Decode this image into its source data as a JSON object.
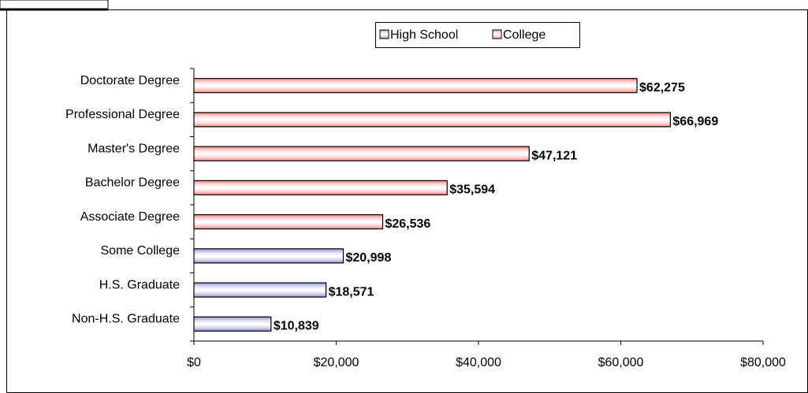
{
  "chart_data": {
    "type": "bar",
    "orientation": "horizontal",
    "categories": [
      "Doctorate Degree",
      "Professional Degree",
      "Master's Degree",
      "Bachelor Degree",
      "Associate Degree",
      "Some College",
      "H.S. Graduate",
      "Non-H.S. Graduate"
    ],
    "series": [
      {
        "name": "High School",
        "color": "#8f8fd0",
        "values": [
          null,
          null,
          null,
          null,
          null,
          20998,
          18571,
          10839
        ],
        "value_labels": [
          null,
          null,
          null,
          null,
          null,
          "$20,998",
          "$18,571",
          "$10,839"
        ]
      },
      {
        "name": "College",
        "color": "#ff8080",
        "values": [
          62275,
          66969,
          47121,
          35594,
          26536,
          null,
          null,
          null
        ],
        "value_labels": [
          "$62,275",
          "$66,969",
          "$47,121",
          "$35,594",
          "$26,536",
          null,
          null,
          null
        ]
      }
    ],
    "xlim": [
      0,
      80000
    ],
    "xticks": [
      {
        "value": 0,
        "label": "$0"
      },
      {
        "value": 20000,
        "label": "$20,000"
      },
      {
        "value": 40000,
        "label": "$40,000"
      },
      {
        "value": 60000,
        "label": "$60,000"
      },
      {
        "value": 80000,
        "label": "$80,000"
      }
    ],
    "legend": "top"
  }
}
